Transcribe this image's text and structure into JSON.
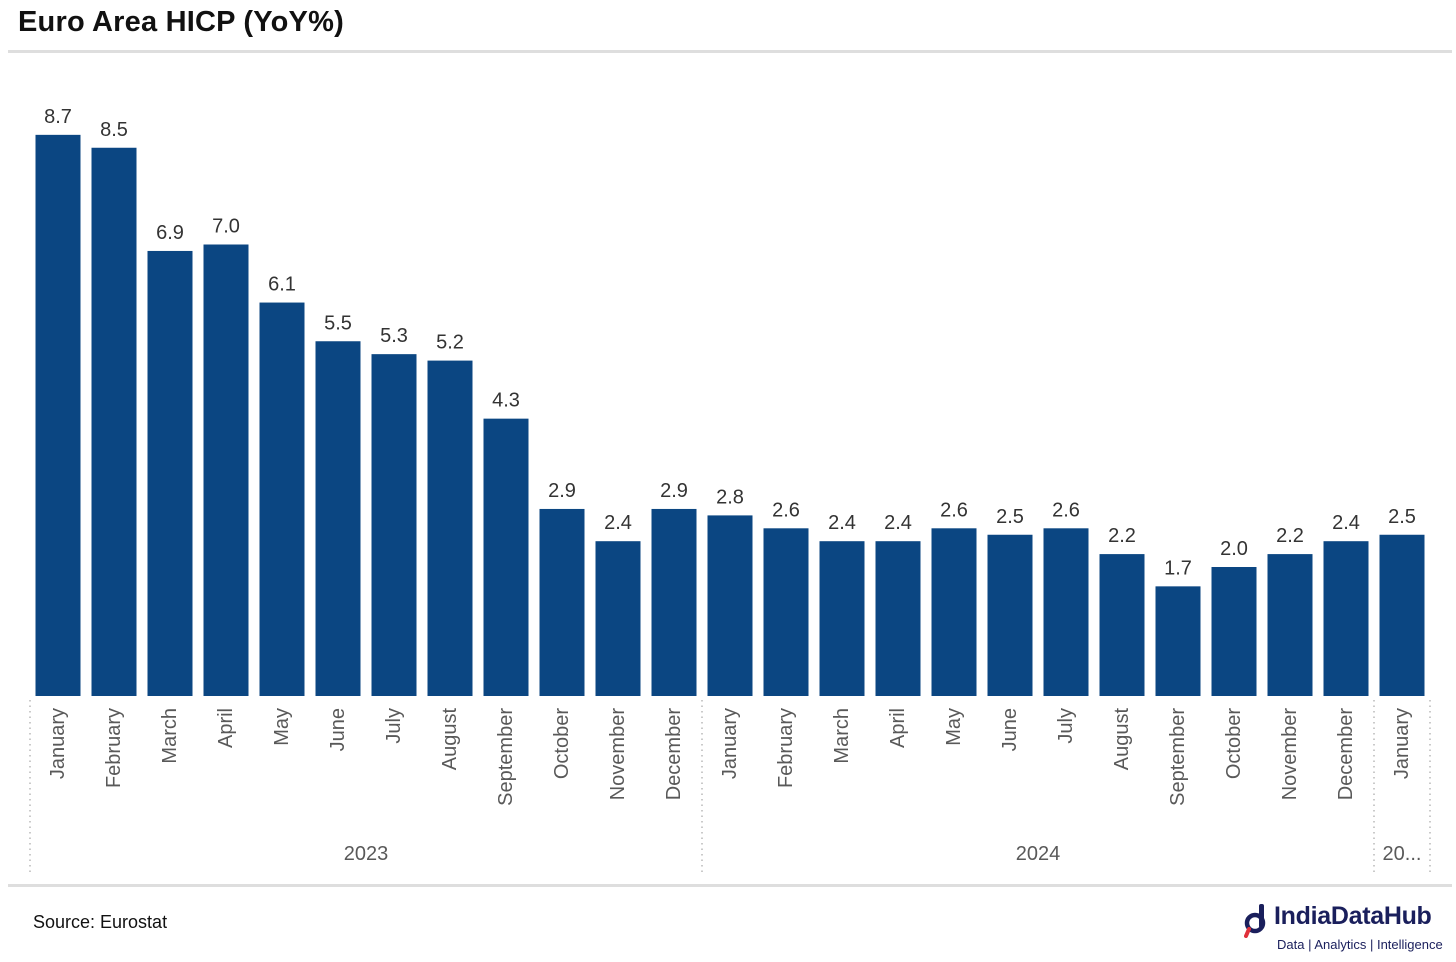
{
  "title": "Euro Area HICP (YoY%)",
  "source": "Source: Eurostat",
  "brand": {
    "name": "IndiaDataHub",
    "tagline": "Data | Analytics | Intelligence",
    "color": "#1a1f5c",
    "icon": "indiadatahub-logo-icon"
  },
  "colors": {
    "bar": "#0b4682",
    "label": "#333333",
    "axis": "#595959"
  },
  "chart_data": {
    "type": "bar",
    "title": "Euro Area HICP (YoY%)",
    "xlabel": "",
    "ylabel": "",
    "ylim": [
      0,
      9.1
    ],
    "grid": false,
    "legend": "none",
    "categories": [
      "January",
      "February",
      "March",
      "April",
      "May",
      "June",
      "July",
      "August",
      "September",
      "October",
      "November",
      "December",
      "January",
      "February",
      "March",
      "April",
      "May",
      "June",
      "July",
      "August",
      "September",
      "October",
      "November",
      "December",
      "January"
    ],
    "values": [
      8.7,
      8.5,
      6.9,
      7.0,
      6.1,
      5.5,
      5.3,
      5.2,
      4.3,
      2.9,
      2.4,
      2.9,
      2.8,
      2.6,
      2.4,
      2.4,
      2.6,
      2.5,
      2.6,
      2.2,
      1.7,
      2.0,
      2.2,
      2.4,
      2.5
    ],
    "value_labels": [
      "8.7",
      "8.5",
      "6.9",
      "7.0",
      "6.1",
      "5.5",
      "5.3",
      "5.2",
      "4.3",
      "2.9",
      "2.4",
      "2.9",
      "2.8",
      "2.6",
      "2.4",
      "2.4",
      "2.6",
      "2.5",
      "2.6",
      "2.2",
      "1.7",
      "2.0",
      "2.2",
      "2.4",
      "2.5"
    ],
    "groups": [
      {
        "label": "2023",
        "count": 12
      },
      {
        "label": "2024",
        "count": 12
      },
      {
        "label": "20...",
        "count": 1
      }
    ]
  }
}
